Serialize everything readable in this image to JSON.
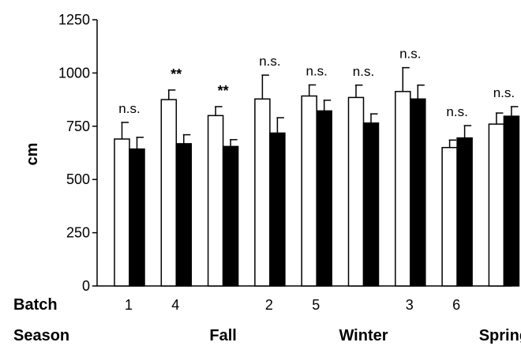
{
  "chart_data": {
    "type": "bar",
    "ylabel": "cm",
    "ylim": [
      0,
      1250
    ],
    "yticks": [
      0,
      250,
      500,
      750,
      1000,
      1250
    ],
    "grid": false,
    "series": [
      {
        "name": "",
        "fill": "#ffffff",
        "values": [
          690,
          875,
          800,
          878,
          892,
          885,
          913,
          650,
          760
        ],
        "errors": [
          78,
          45,
          42,
          112,
          52,
          58,
          112,
          35,
          52
        ]
      },
      {
        "name": "",
        "fill": "#000000",
        "values": [
          643,
          668,
          655,
          718,
          822,
          765,
          878,
          695,
          797
        ],
        "errors": [
          55,
          42,
          32,
          72,
          50,
          43,
          65,
          58,
          45
        ]
      }
    ],
    "annotations": [
      "n.s.",
      "**",
      "**",
      "n.s.",
      "n.s.",
      "n.s.",
      "n.s.",
      "n.s.",
      "n.s."
    ],
    "batch_label": "Batch",
    "batch_ticks": [
      "1",
      "4",
      "",
      "2",
      "5",
      "",
      "3",
      "6",
      ""
    ],
    "season_label": "Season",
    "season_ticks": [
      "",
      "",
      "Fall",
      "",
      "",
      "Winter",
      "",
      "",
      "Spring"
    ]
  },
  "colors": {
    "axis": "#000000",
    "open_bar": "#ffffff",
    "filled_bar": "#000000"
  }
}
